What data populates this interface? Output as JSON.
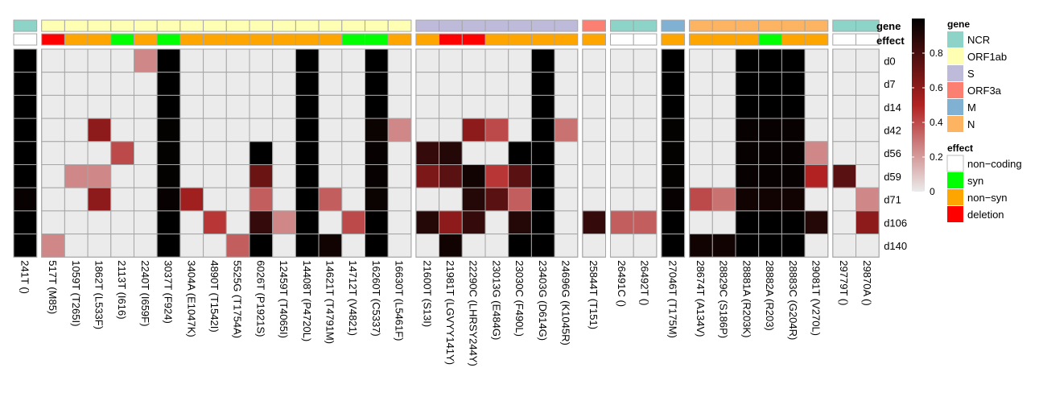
{
  "chart_data": {
    "type": "heatmap",
    "title": "",
    "rows": [
      "d0",
      "d7",
      "d14",
      "d42",
      "d56",
      "d59",
      "d71",
      "d106",
      "d140"
    ],
    "annotation_labels": {
      "gene": "gene",
      "effect": "effect"
    },
    "column_groups": [
      {
        "gene": "NCR",
        "columns": [
          {
            "label": "241T ()",
            "effect": "non-coding",
            "values": [
              1,
              1,
              1,
              1,
              1,
              1,
              0.98,
              1,
              1
            ]
          }
        ]
      },
      {
        "gene": "ORF1ab",
        "columns": [
          {
            "label": "517T (M85)",
            "effect": "deletion",
            "values": [
              0,
              0,
              0,
              0,
              0,
              0,
              0,
              0,
              0.25
            ]
          },
          {
            "label": "1059T (T265I)",
            "effect": "non-syn",
            "values": [
              0,
              0,
              0,
              0,
              0,
              0.25,
              0,
              0,
              0
            ]
          },
          {
            "label": "1862T (L533F)",
            "effect": "non-syn",
            "values": [
              0,
              0,
              0,
              0.6,
              0,
              0.25,
              0.6,
              0,
              0
            ]
          },
          {
            "label": "2113T (I616)",
            "effect": "syn",
            "values": [
              0,
              0,
              0,
              0,
              0.4,
              0,
              0,
              0,
              0
            ]
          },
          {
            "label": "2240T (I659F)",
            "effect": "non-syn",
            "values": [
              0.25,
              0,
              0,
              0,
              0,
              0,
              0,
              0,
              0
            ]
          },
          {
            "label": "3037T (F924)",
            "effect": "syn",
            "values": [
              1,
              1,
              1,
              0.99,
              0.99,
              0.99,
              0.98,
              1,
              1
            ]
          },
          {
            "label": "3404A (E1047K)",
            "effect": "non-syn",
            "values": [
              0,
              0,
              0,
              0,
              0,
              0,
              0.55,
              0,
              0
            ]
          },
          {
            "label": "4890T (T1542I)",
            "effect": "non-syn",
            "values": [
              0,
              0,
              0,
              0,
              0,
              0,
              0,
              0.45,
              0
            ]
          },
          {
            "label": "5525G (T1754A)",
            "effect": "non-syn",
            "values": [
              0,
              0,
              0,
              0,
              0,
              0,
              0,
              0,
              0.35
            ]
          },
          {
            "label": "6026T (P1921S)",
            "effect": "non-syn",
            "values": [
              0,
              0,
              0,
              0,
              1,
              0.7,
              0.35,
              0.85,
              1
            ]
          },
          {
            "label": "12459T (T4065I)",
            "effect": "non-syn",
            "values": [
              0,
              0,
              0,
              0,
              0,
              0,
              0,
              0.25,
              0
            ]
          },
          {
            "label": "14408T (P4720L)",
            "effect": "non-syn",
            "values": [
              1,
              1,
              1,
              1,
              1,
              1,
              1,
              1,
              1
            ]
          },
          {
            "label": "14621T (T4791M)",
            "effect": "non-syn",
            "values": [
              0,
              0,
              0,
              0,
              0,
              0,
              0.35,
              0,
              0.95
            ]
          },
          {
            "label": "14712T (V4821)",
            "effect": "syn",
            "values": [
              0,
              0,
              0,
              0,
              0,
              0,
              0,
              0.4,
              0
            ]
          },
          {
            "label": "16260T (C5337)",
            "effect": "syn",
            "values": [
              1,
              1,
              1,
              0.97,
              0.98,
              0.98,
              0.97,
              1,
              1
            ]
          },
          {
            "label": "16630T (L5461F)",
            "effect": "non-syn",
            "values": [
              0,
              0,
              0,
              0.25,
              0,
              0,
              0,
              0,
              0
            ]
          }
        ]
      },
      {
        "gene": "S",
        "columns": [
          {
            "label": "21600T (S13I)",
            "effect": "non-syn",
            "values": [
              0,
              0,
              0,
              0,
              0.85,
              0.65,
              0,
              0.9,
              0
            ]
          },
          {
            "label": "21981T (LGVYY141Y)",
            "effect": "deletion",
            "values": [
              0,
              0,
              0,
              0,
              0.9,
              0.75,
              0,
              0.6,
              0.95
            ]
          },
          {
            "label": "22290C (LHRSY244Y)",
            "effect": "deletion",
            "values": [
              0,
              0,
              0,
              0.6,
              0,
              0.95,
              0.9,
              0.85,
              0
            ]
          },
          {
            "label": "23013G (E484G)",
            "effect": "non-syn",
            "values": [
              0,
              0,
              0,
              0.4,
              0,
              0.45,
              0.75,
              0,
              0
            ]
          },
          {
            "label": "23030C (F490L)",
            "effect": "non-syn",
            "values": [
              0,
              0,
              0,
              0,
              1,
              0.75,
              0.35,
              0.9,
              1
            ]
          },
          {
            "label": "23403G (D614G)",
            "effect": "non-syn",
            "values": [
              1,
              1,
              1,
              1,
              1,
              1,
              1,
              1,
              1
            ]
          },
          {
            "label": "24696G (K1045R)",
            "effect": "non-syn",
            "values": [
              0,
              0,
              0,
              0.3,
              0,
              0,
              0,
              0,
              0
            ]
          }
        ]
      },
      {
        "gene": "ORF3a",
        "columns": [
          {
            "label": "25844T (T151)",
            "effect": "non-syn",
            "values": [
              0,
              0,
              0,
              0,
              0,
              0,
              0,
              0.85,
              0
            ]
          }
        ]
      },
      {
        "gene": "NCR",
        "columns": [
          {
            "label": "26491C ()",
            "effect": "non-coding",
            "values": [
              0,
              0,
              0,
              0,
              0,
              0,
              0,
              0.35,
              0
            ]
          },
          {
            "label": "26492T ()",
            "effect": "non-coding",
            "values": [
              0,
              0,
              0,
              0,
              0,
              0,
              0,
              0.35,
              0
            ]
          }
        ]
      },
      {
        "gene": "M",
        "columns": [
          {
            "label": "27046T (T175M)",
            "effect": "non-syn",
            "values": [
              1,
              1,
              1,
              0.99,
              0.99,
              0.99,
              0.98,
              1,
              1
            ]
          }
        ]
      },
      {
        "gene": "N",
        "columns": [
          {
            "label": "28674T (A134V)",
            "effect": "non-syn",
            "values": [
              0,
              0,
              0,
              0,
              0,
              0,
              0.4,
              0,
              0.95
            ]
          },
          {
            "label": "28829C (S186P)",
            "effect": "non-syn",
            "values": [
              0,
              0,
              0,
              0,
              0,
              0,
              0.3,
              0,
              0.95
            ]
          },
          {
            "label": "28881A (R203K)",
            "effect": "non-syn",
            "values": [
              1,
              1,
              1,
              0.98,
              0.98,
              0.98,
              0.95,
              1,
              1
            ]
          },
          {
            "label": "28882A (R203)",
            "effect": "syn",
            "values": [
              1,
              1,
              1,
              0.98,
              0.98,
              0.98,
              0.95,
              1,
              1
            ]
          },
          {
            "label": "28883C (G204R)",
            "effect": "non-syn",
            "values": [
              1,
              1,
              1,
              0.98,
              0.98,
              0.98,
              0.95,
              1,
              1
            ]
          },
          {
            "label": "29081T (V270L)",
            "effect": "non-syn",
            "values": [
              0,
              0,
              0,
              0,
              0.25,
              0.5,
              0,
              0.9,
              0
            ]
          }
        ]
      },
      {
        "gene": "NCR",
        "columns": [
          {
            "label": "29779T ()",
            "effect": "non-coding",
            "values": [
              0,
              0,
              0,
              0,
              0,
              0.75,
              0,
              0,
              0
            ]
          },
          {
            "label": "29870A ()",
            "effect": "non-coding",
            "values": [
              0,
              0,
              0,
              0,
              0,
              0,
              0.25,
              0.6,
              0
            ]
          }
        ]
      }
    ],
    "color_scale": {
      "min": 0,
      "max": 1,
      "low_color": "#ebebeb",
      "mid_color": "#b22222",
      "high_color": "#000000",
      "ticks": [
        "0",
        "0.2",
        "0.4",
        "0.6",
        "0.8"
      ]
    },
    "gene_legend": {
      "title": "gene",
      "items": [
        {
          "label": "NCR",
          "color": "#8dd3c7"
        },
        {
          "label": "ORF1ab",
          "color": "#ffffb3"
        },
        {
          "label": "S",
          "color": "#bebada"
        },
        {
          "label": "ORF3a",
          "color": "#fb8072"
        },
        {
          "label": "M",
          "color": "#80b1d3"
        },
        {
          "label": "N",
          "color": "#fdb462"
        }
      ]
    },
    "effect_legend": {
      "title": "effect",
      "items": [
        {
          "label": "non−coding",
          "key": "non-coding",
          "color": "#ffffff"
        },
        {
          "label": "syn",
          "key": "syn",
          "color": "#00ff00"
        },
        {
          "label": "non−syn",
          "key": "non-syn",
          "color": "#ffa500"
        },
        {
          "label": "deletion",
          "key": "deletion",
          "color": "#ff0000"
        }
      ]
    }
  }
}
